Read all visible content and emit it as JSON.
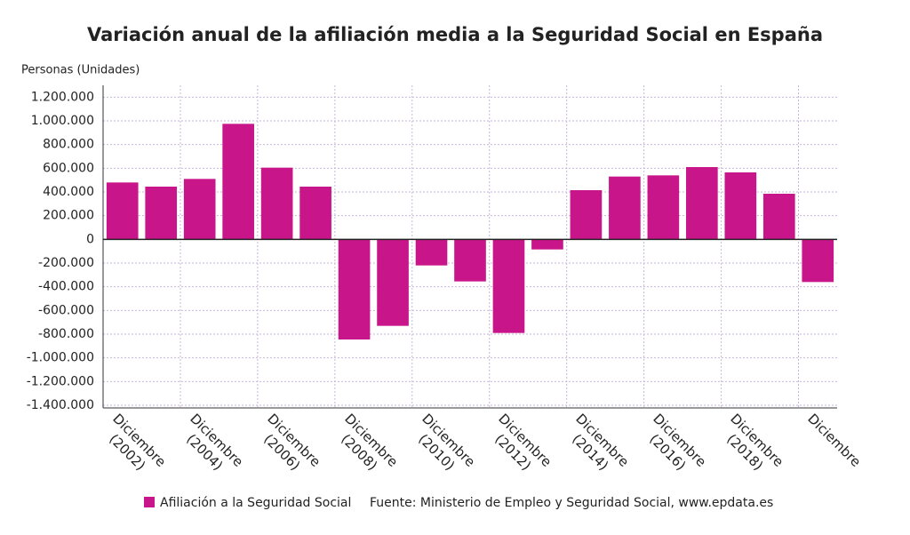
{
  "chart_data": {
    "type": "bar",
    "title": "Variación anual de la afiliación media a la Seguridad Social en España",
    "y_axis_label": "Personas (Unidades)",
    "source": "Fuente: Ministerio de Empleo y Seguridad Social, www.epdata.es",
    "categories": [
      "Diciembre\n(2002)",
      null,
      "Diciembre\n(2004)",
      null,
      "Diciembre\n(2006)",
      null,
      "Diciembre\n(2008)",
      null,
      "Diciembre\n(2010)",
      null,
      "Diciembre\n(2012)",
      null,
      "Diciembre\n(2014)",
      null,
      "Diciembre\n(2016)",
      null,
      "Diciembre\n(2018)",
      null,
      "Diciembre"
    ],
    "series": [
      {
        "name": "Afiliación a la Seguridad Social",
        "color": "#c8168a",
        "values": [
          480000,
          445000,
          510000,
          975000,
          605000,
          445000,
          -845000,
          -730000,
          -220000,
          -355000,
          -790000,
          -85000,
          415000,
          530000,
          540000,
          610000,
          565000,
          385000,
          -360000
        ]
      }
    ],
    "ylim": [
      -1400000,
      1300000
    ],
    "yticks": [
      {
        "value": -1400000,
        "label": "-1.400.000"
      },
      {
        "value": -1200000,
        "label": "-1.200.000"
      },
      {
        "value": -1000000,
        "label": "-1.000.000"
      },
      {
        "value": -800000,
        "label": "-800.000"
      },
      {
        "value": -600000,
        "label": "-600.000"
      },
      {
        "value": -400000,
        "label": "-400.000"
      },
      {
        "value": -200000,
        "label": "-200.000"
      },
      0,
      {
        "value": 200000,
        "label": "200.000"
      },
      {
        "value": 400000,
        "label": "400.000"
      },
      {
        "value": 600000,
        "label": "600.000"
      },
      {
        "value": 800000,
        "label": "800.000"
      },
      {
        "value": 1000000,
        "label": "1.000.000"
      },
      {
        "value": 1200000,
        "label": "1.200.000"
      }
    ],
    "grid": true
  }
}
